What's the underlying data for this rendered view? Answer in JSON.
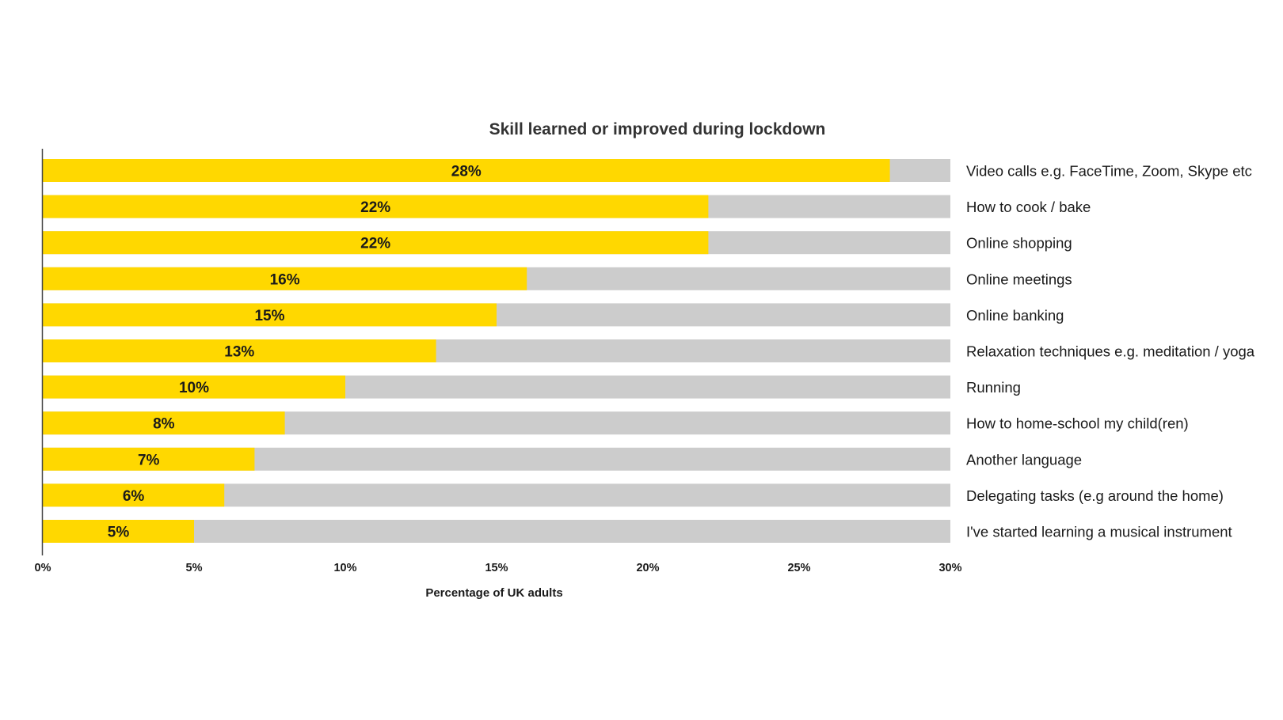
{
  "chart_data": {
    "type": "bar",
    "orientation": "horizontal",
    "title": "Skill learned or improved during lockdown",
    "xlabel": "Percentage of UK adults",
    "ylabel": "",
    "xlim": [
      0,
      30
    ],
    "ticks": [
      0,
      5,
      10,
      15,
      20,
      25,
      30
    ],
    "tick_labels": [
      "0%",
      "5%",
      "10%",
      "15%",
      "20%",
      "25%",
      "30%"
    ],
    "categories": [
      "Video calls e.g. FaceTime, Zoom, Skype etc",
      "How to cook / bake",
      "Online shopping",
      "Online meetings",
      "Online banking",
      "Relaxation techniques e.g. meditation / yoga",
      "Running",
      "How to home-school my child(ren)",
      "Another language",
      "Delegating tasks (e.g around the home)",
      "I've started learning a musical instrument"
    ],
    "values": [
      28,
      22,
      22,
      16,
      15,
      13,
      10,
      8,
      7,
      6,
      5
    ],
    "value_labels": [
      "28%",
      "22%",
      "22%",
      "16%",
      "15%",
      "13%",
      "10%",
      "8%",
      "7%",
      "6%",
      "5%"
    ],
    "bar_color": "#FFD800",
    "track_color": "#CCCCCC",
    "grid": false,
    "legend": "none"
  }
}
